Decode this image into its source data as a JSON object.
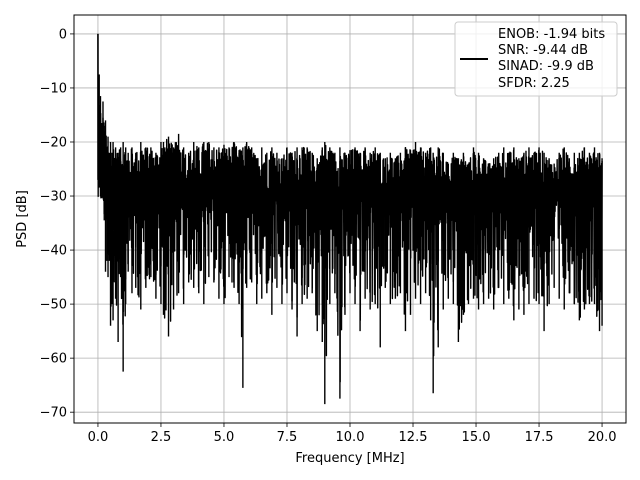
{
  "chart_data": {
    "type": "line",
    "title": "",
    "xlabel": "Frequency [MHz]",
    "ylabel": "PSD [dB]",
    "xlim": [
      -0.95,
      20.95
    ],
    "ylim": [
      -72,
      3.5
    ],
    "xticks": [
      0.0,
      2.5,
      5.0,
      7.5,
      10.0,
      12.5,
      15.0,
      17.5,
      20.0
    ],
    "xtick_labels": [
      "0.0",
      "2.5",
      "5.0",
      "7.5",
      "10.0",
      "12.5",
      "15.0",
      "17.5",
      "20.0"
    ],
    "yticks": [
      0,
      -10,
      -20,
      -30,
      -40,
      -50,
      -60,
      -70
    ],
    "ytick_labels": [
      "0",
      "−10",
      "−20",
      "−30",
      "−40",
      "−50",
      "−60",
      "−70"
    ],
    "grid": true,
    "legend_position": "top-right",
    "series": [
      {
        "color": "#000000",
        "x": [
          0.0,
          0.05,
          0.1,
          0.15,
          0.2,
          0.25,
          0.3,
          0.35,
          0.4,
          0.45,
          0.5,
          0.55,
          0.6,
          0.7,
          0.8,
          0.9,
          1.0,
          1.1,
          1.2,
          1.35,
          1.5,
          1.7,
          1.9,
          2.1,
          2.3,
          2.5,
          2.6,
          2.8,
          3.0,
          3.2,
          3.4,
          3.6,
          3.8,
          4.0,
          4.2,
          4.4,
          4.6,
          4.8,
          5.0,
          5.2,
          5.4,
          5.6,
          5.75,
          5.9,
          6.1,
          6.3,
          6.5,
          6.7,
          6.9,
          7.1,
          7.3,
          7.5,
          7.7,
          7.9,
          8.1,
          8.3,
          8.5,
          8.7,
          8.9,
          9.0,
          9.2,
          9.4,
          9.6,
          9.8,
          10.0,
          10.2,
          10.4,
          10.6,
          10.8,
          11.0,
          11.2,
          11.4,
          11.6,
          11.8,
          12.0,
          12.2,
          12.4,
          12.6,
          12.8,
          13.0,
          13.2,
          13.3,
          13.5,
          13.7,
          13.9,
          14.1,
          14.3,
          14.5,
          14.7,
          14.9,
          15.1,
          15.3,
          15.5,
          15.7,
          15.9,
          16.1,
          16.3,
          16.5,
          16.7,
          16.9,
          17.1,
          17.3,
          17.5,
          17.7,
          17.9,
          18.1,
          18.3,
          18.5,
          18.7,
          18.9,
          19.1,
          19.3,
          19.5,
          19.7,
          19.9,
          20.0
        ],
        "y_max": [
          0,
          -7.5,
          -11.5,
          -16.5,
          -12.5,
          -17,
          -16,
          -21,
          -19,
          -22,
          -20,
          -22,
          -20,
          -21,
          -22,
          -21,
          -20,
          -21,
          -22,
          -21,
          -22,
          -20,
          -21,
          -21,
          -22,
          -20,
          -20,
          -19,
          -21,
          -18.5,
          -21,
          -22,
          -20,
          -21,
          -20,
          -20,
          -21,
          -21,
          -20.5,
          -21,
          -20,
          -21.5,
          -21,
          -20,
          -21,
          -23,
          -21,
          -22,
          -21,
          -22,
          -23,
          -21,
          -22,
          -21,
          -21,
          -21,
          -22,
          -23,
          -21,
          -20,
          -21,
          -22,
          -21,
          -22,
          -21.5,
          -21,
          -22,
          -21,
          -22,
          -21,
          -22,
          -23,
          -22,
          -23,
          -22,
          -21,
          -21.5,
          -20,
          -21,
          -22,
          -21,
          -22,
          -21,
          -22,
          -24,
          -22,
          -23,
          -22,
          -24,
          -21,
          -22,
          -23,
          -24,
          -23,
          -22,
          -21,
          -22,
          -21,
          -23,
          -22,
          -21,
          -22,
          -21,
          -22,
          -23,
          -24,
          -22,
          -21,
          -23,
          -22,
          -22,
          -21,
          -22,
          -21,
          -22,
          -23
        ],
        "y_min": [
          -27,
          -26,
          -27,
          -28,
          -30,
          -34.5,
          -44,
          -42,
          -45,
          -42,
          -54,
          -50,
          -53,
          -49,
          -57,
          -45,
          -62.5,
          -50,
          -44,
          -48,
          -47,
          -51,
          -47,
          -45,
          -49,
          -50,
          -52,
          -56,
          -51,
          -48,
          -50,
          -46,
          -47,
          -48,
          -50,
          -45,
          -46,
          -49,
          -50,
          -45,
          -47,
          -50,
          -65.5,
          -47,
          -46,
          -50,
          -49,
          -48,
          -52,
          -47,
          -50,
          -48,
          -51,
          -56,
          -50,
          -49,
          -48,
          -55,
          -57,
          -68.5,
          -50,
          -48,
          -67.5,
          -52,
          -48,
          -50,
          -55,
          -49,
          -51,
          -50,
          -58,
          -47,
          -50,
          -49,
          -48,
          -55,
          -52,
          -49,
          -50,
          -48,
          -53,
          -66.5,
          -58,
          -51,
          -49,
          -50,
          -57,
          -52,
          -50,
          -49,
          -51,
          -50,
          -49,
          -51,
          -47,
          -50,
          -49,
          -53,
          -51,
          -52,
          -50,
          -49,
          -50,
          -55,
          -50,
          -47,
          -49,
          -51,
          -48,
          -50,
          -53,
          -51,
          -50,
          -50,
          -55,
          -54
        ]
      }
    ],
    "legend": {
      "entries": [
        {
          "lines": [
            "ENOB: -1.94 bits",
            "SNR: -9.44 dB",
            "SINAD: -9.9 dB",
            "SFDR: 2.25"
          ],
          "color": "#000000"
        }
      ]
    }
  }
}
